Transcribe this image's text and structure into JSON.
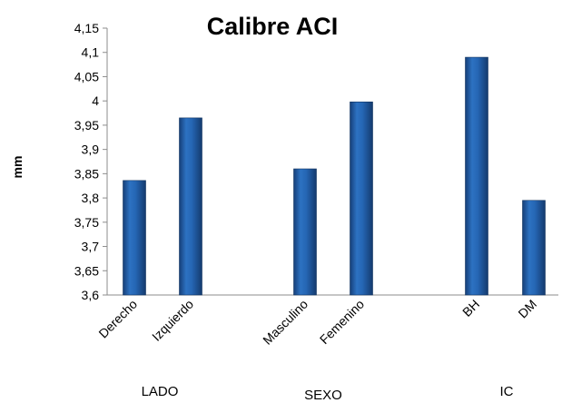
{
  "chart_data": {
    "type": "bar",
    "title": "Calibre ACI",
    "ylabel": "mm",
    "ylim": [
      3.6,
      4.15
    ],
    "yticks": [
      "3,6",
      "3,65",
      "3,7",
      "3,75",
      "3,8",
      "3,85",
      "3,9",
      "3,95",
      "4",
      "4,05",
      "4,1",
      "4,15"
    ],
    "categories": [
      "Derecho",
      "Izquierdo",
      "Masculino",
      "Femenino",
      "BH",
      "DM"
    ],
    "values": [
      3.836,
      3.965,
      3.86,
      3.998,
      4.09,
      3.795
    ],
    "groups": [
      {
        "label": "LADO",
        "categories": [
          "Derecho",
          "Izquierdo"
        ]
      },
      {
        "label": "SEXO",
        "categories": [
          "Masculino",
          "Femenino"
        ]
      },
      {
        "label": "IC",
        "categories": [
          "BH",
          "DM"
        ]
      }
    ],
    "grid": false,
    "legend": "none",
    "bar_color": "#1f5fa8"
  }
}
